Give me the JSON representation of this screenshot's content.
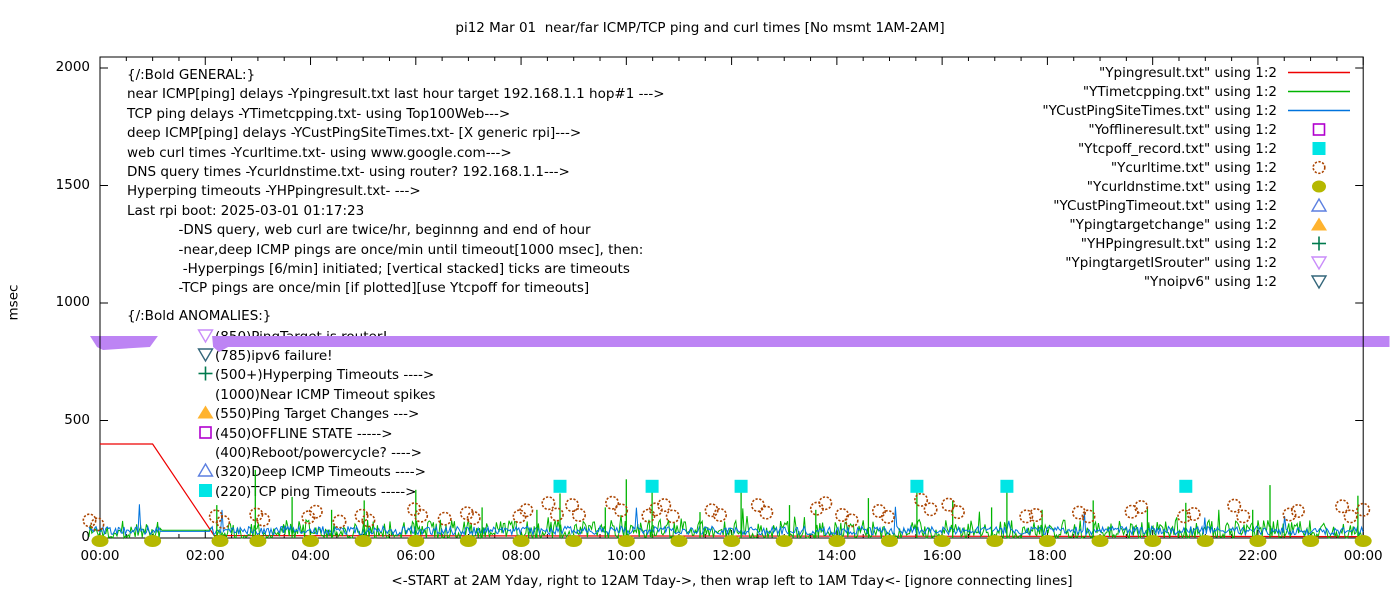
{
  "title": "pi12 Mar 01  near/far ICMP/TCP ping and curl times [No msmt 1AM-2AM]",
  "ylabel": "msec",
  "xlabel": "<-START at 2AM Yday, right to 12AM Tday->, then wrap left to 1AM Tday<- [ignore connecting lines]",
  "axes": {
    "y_ticks": [
      "2000",
      "1500",
      "1000",
      "500",
      "0"
    ],
    "y_tick_values": [
      2000,
      1500,
      1000,
      500,
      0
    ],
    "x_ticks": [
      "00:00",
      "02:00",
      "04:00",
      "06:00",
      "08:00",
      "10:00",
      "12:00",
      "14:00",
      "16:00",
      "18:00",
      "20:00",
      "22:00",
      "00:00"
    ],
    "x_tick_hours": [
      0,
      2,
      4,
      6,
      8,
      10,
      12,
      14,
      16,
      18,
      20,
      22,
      24
    ],
    "y_range": [
      0,
      2000
    ],
    "x_range_hours": [
      0,
      24
    ],
    "grid": false
  },
  "general_block": {
    "lines": [
      "{/:Bold GENERAL:}",
      "near ICMP[ping] delays -Ypingresult.txt last hour target 192.168.1.1 hop#1 --->",
      "TCP ping delays -YTimetcpping.txt- using Top100Web--->",
      "deep ICMP[ping] delays -YCustPingSiteTimes.txt- [X generic rpi]--->",
      "web curl times -Ycurltime.txt- using www.google.com--->",
      "DNS query times -Ycurldnstime.txt- using router? 192.168.1.1--->",
      "Hyperping timeouts -YHPpingresult.txt- --->",
      "Last rpi boot: 2025-03-01 01:17:23",
      "            -DNS query, web curl are twice/hr, beginnng and end of hour",
      "            -near,deep ICMP pings are once/min until timeout[1000 msec], then:",
      "             -Hyperpings [6/min] initiated; [vertical stacked] ticks are timeouts",
      "            -TCP pings are once/min [if plotted][use Ytcpoff for timeouts]"
    ]
  },
  "anomalies_block": {
    "header": "{/:Bold ANOMALIES:}",
    "items": [
      {
        "marker": "triangle-down-open",
        "color": "#c98cfa",
        "label": "(850)PingTarget is router!"
      },
      {
        "marker": "triangle-down-open",
        "color": "#33667a",
        "label": "(785)ipv6 failure!"
      },
      {
        "marker": "plus",
        "color": "#007a4d",
        "label": "(500+)Hyperping Timeouts ---->"
      },
      {
        "marker": "none",
        "color": "",
        "label": "(1000)Near ICMP Timeout spikes"
      },
      {
        "marker": "triangle-up-filled",
        "color": "#ffb32e",
        "label": "(550)Ping Target Changes --->"
      },
      {
        "marker": "square-open",
        "color": "#b100cf",
        "label": "(450)OFFLINE STATE ----->"
      },
      {
        "marker": "none",
        "color": "",
        "label": "(400)Reboot/powercycle? ---->"
      },
      {
        "marker": "triangle-up-open",
        "color": "#5b7fe0",
        "label": "(320)Deep ICMP Timeouts ---->"
      },
      {
        "marker": "square-filled",
        "color": "#00e5e5",
        "label": "(220)TCP ping Timeouts ----->"
      }
    ]
  },
  "legend": [
    {
      "label": "\"Ypingresult.txt\" using 1:2",
      "marker": "line",
      "color": "#ee0000"
    },
    {
      "label": "\"YTimetcpping.txt\" using 1:2",
      "marker": "line",
      "color": "#00b400"
    },
    {
      "label": "\"YCustPingSiteTimes.txt\" using 1:2",
      "marker": "line",
      "color": "#0073dd"
    },
    {
      "label": "\"Yofflineresult.txt\" using 1:2",
      "marker": "square-open",
      "color": "#b100cf"
    },
    {
      "label": "\"Ytcpoff_record.txt\" using 1:2",
      "marker": "square-filled",
      "color": "#00e5e5"
    },
    {
      "label": "\"Ycurltime.txt\" using 1:2",
      "marker": "circle-open",
      "color": "#ab4400"
    },
    {
      "label": "\"Ycurldnstime.txt\" using 1:2",
      "marker": "circle-filled",
      "color": "#b5b800"
    },
    {
      "label": "\"YCustPingTimeout.txt\" using 1:2",
      "marker": "triangle-up-open",
      "color": "#5b7fe0"
    },
    {
      "label": "\"Ypingtargetchange\" using 1:2",
      "marker": "triangle-up-filled",
      "color": "#ffb32e"
    },
    {
      "label": "\"YHPpingresult.txt\" using 1:2",
      "marker": "plus",
      "color": "#007a4d"
    },
    {
      "label": "\"YpingtargetISrouter\" using 1:2",
      "marker": "triangle-down-open",
      "color": "#c98cfa"
    },
    {
      "label": "\"Ynoipv6\" using 1:2",
      "marker": "triangle-down-open",
      "color": "#33667a"
    }
  ],
  "chart_data": {
    "type": "line",
    "title": "pi12 Mar 01  near/far ICMP/TCP ping and curl times [No msmt 1AM-2AM]",
    "xlabel": "<-START at 2AM Yday, right to 12AM Tday->, then wrap left to 1AM Tday<- [ignore connecting lines]",
    "ylabel": "msec",
    "ylim": [
      0,
      2000
    ],
    "xlim_hours": [
      0,
      24
    ],
    "no_measurement_gap_hours": [
      1.15,
      2.1
    ],
    "series": [
      {
        "name": "Ypingresult.txt",
        "style": "line",
        "color": "#ee0000",
        "points_h_ms": [
          [
            0,
            400
          ],
          [
            1,
            400
          ],
          [
            2.17,
            10
          ],
          [
            24,
            6
          ]
        ]
      },
      {
        "name": "YTimetcpping.txt",
        "style": "noisy-line",
        "color": "#00b400",
        "noise": {
          "min": 0,
          "max": 160,
          "median": 25,
          "gap_flat_ms": 33,
          "seed": 1337
        }
      },
      {
        "name": "YCustPingSiteTimes.txt",
        "style": "noisy-line",
        "color": "#0073dd",
        "noise": {
          "min": 10,
          "max": 170,
          "median": 32,
          "gap_flat_ms": 28,
          "seed": 902
        }
      },
      {
        "name": "Yofflineresult.txt",
        "style": "points",
        "marker": "square-open",
        "color": "#b100cf",
        "points_h_ms": []
      },
      {
        "name": "Ytcpoff_record.txt",
        "style": "points",
        "marker": "square-filled",
        "color": "#00e5e5",
        "value_ms": 220,
        "hours": [
          8.74,
          10.49,
          12.18,
          15.52,
          17.23,
          20.63
        ]
      },
      {
        "name": "Ycurltime.txt",
        "style": "points",
        "marker": "circle-open",
        "color": "#ab4400",
        "points_h_ms": [
          [
            -0.2,
            75
          ],
          [
            -0.05,
            58
          ],
          [
            2.2,
            92
          ],
          [
            2.34,
            68
          ],
          [
            2.97,
            100
          ],
          [
            3.1,
            78
          ],
          [
            3.96,
            88
          ],
          [
            4.1,
            112
          ],
          [
            4.55,
            70
          ],
          [
            4.97,
            95
          ],
          [
            5.1,
            75
          ],
          [
            5.97,
            122
          ],
          [
            6.1,
            95
          ],
          [
            6.55,
            82
          ],
          [
            6.97,
            105
          ],
          [
            7.1,
            85
          ],
          [
            7.97,
            92
          ],
          [
            8.1,
            118
          ],
          [
            8.52,
            148
          ],
          [
            8.68,
            100
          ],
          [
            8.97,
            140
          ],
          [
            9.1,
            98
          ],
          [
            9.73,
            150
          ],
          [
            9.9,
            118
          ],
          [
            10.42,
            95
          ],
          [
            10.56,
            122
          ],
          [
            10.72,
            140
          ],
          [
            10.88,
            92
          ],
          [
            11.62,
            118
          ],
          [
            11.78,
            98
          ],
          [
            12.5,
            140
          ],
          [
            12.66,
            108
          ],
          [
            13.62,
            125
          ],
          [
            13.78,
            148
          ],
          [
            14.1,
            98
          ],
          [
            14.28,
            75
          ],
          [
            14.8,
            115
          ],
          [
            14.97,
            90
          ],
          [
            15.6,
            162
          ],
          [
            15.78,
            122
          ],
          [
            16.12,
            142
          ],
          [
            16.3,
            110
          ],
          [
            17.6,
            92
          ],
          [
            17.78,
            98
          ],
          [
            18.6,
            108
          ],
          [
            18.78,
            92
          ],
          [
            19.6,
            112
          ],
          [
            19.78,
            132
          ],
          [
            20.6,
            92
          ],
          [
            20.78,
            102
          ],
          [
            21.55,
            138
          ],
          [
            21.72,
            92
          ],
          [
            22.6,
            100
          ],
          [
            22.76,
            115
          ],
          [
            23.6,
            135
          ],
          [
            23.76,
            92
          ],
          [
            24.0,
            120
          ]
        ]
      },
      {
        "name": "Ycurldnstime.txt",
        "style": "points",
        "marker": "circle-filled",
        "color": "#b5b800",
        "value_ms": 0,
        "hours": [
          0,
          1,
          2.28,
          3,
          4,
          5,
          6,
          7,
          8,
          9,
          10,
          11,
          12,
          13,
          14,
          15,
          16,
          17,
          18,
          19,
          20,
          21,
          22,
          23,
          24
        ]
      },
      {
        "name": "YCustPingTimeout.txt",
        "style": "points",
        "marker": "triangle-up-open",
        "color": "#5b7fe0",
        "points_h_ms": []
      },
      {
        "name": "Ypingtargetchange",
        "style": "points",
        "marker": "triangle-up-filled",
        "color": "#ffb32e",
        "points_h_ms": []
      },
      {
        "name": "YHPpingresult.txt",
        "style": "impulses",
        "color": "#00b400",
        "spikes_h_peak_ms": [
          [
            2.22,
            140
          ],
          [
            2.95,
            290
          ],
          [
            3.65,
            175
          ],
          [
            4.4,
            120
          ],
          [
            5.02,
            160
          ],
          [
            6.0,
            205
          ],
          [
            7.26,
            130
          ],
          [
            8.3,
            120
          ],
          [
            8.74,
            190
          ],
          [
            9.6,
            130
          ],
          [
            10.0,
            250
          ],
          [
            10.49,
            215
          ],
          [
            11.4,
            110
          ],
          [
            12.18,
            215
          ],
          [
            13.1,
            140
          ],
          [
            13.6,
            120
          ],
          [
            14.6,
            170
          ],
          [
            15.52,
            215
          ],
          [
            16.2,
            160
          ],
          [
            16.94,
            130
          ],
          [
            17.23,
            215
          ],
          [
            17.9,
            120
          ],
          [
            18.87,
            160
          ],
          [
            19.9,
            130
          ],
          [
            20.63,
            150
          ],
          [
            21.9,
            120
          ],
          [
            22.23,
            225
          ],
          [
            23.9,
            180
          ]
        ]
      },
      {
        "name": "YpingtargetISrouter",
        "style": "marker-band",
        "marker": "triangle-down-filled",
        "color": "#bd84f4",
        "value_ms": 850,
        "segments_hours": [
          [
            -0.23,
            1.1
          ],
          [
            2.13,
            24.5
          ]
        ]
      },
      {
        "name": "Ynoipv6",
        "style": "points",
        "marker": "triangle-down-open",
        "color": "#33667a",
        "points_h_ms": []
      }
    ]
  }
}
